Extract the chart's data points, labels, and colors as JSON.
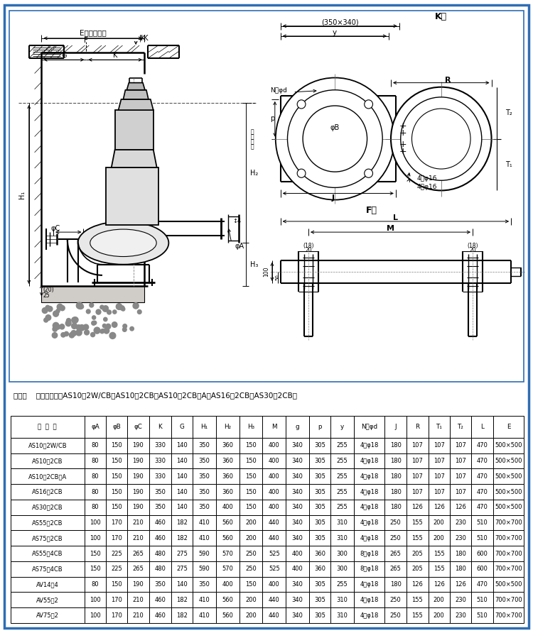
{
  "note": "注：（    ）内尺寸适用AS10－2W/CB、AS10－2CB、AS10－2CB－A、AS16－2CB、AS30－2CB。",
  "headers": [
    "泵  型  号",
    "φA",
    "φB",
    "φC",
    "K",
    "G",
    "H₁",
    "H₂",
    "H₃",
    "M",
    "g",
    "p",
    "y",
    "N－φd",
    "J",
    "R",
    "T₁",
    "T₂",
    "L",
    "E"
  ],
  "rows": [
    [
      "AS10－2W/CB",
      "80",
      "150",
      "190",
      "330",
      "140",
      "350",
      "360",
      "150",
      "400",
      "340",
      "305",
      "255",
      "4－φ18",
      "180",
      "107",
      "107",
      "107",
      "470",
      "500×500"
    ],
    [
      "AS10－2CB",
      "80",
      "150",
      "190",
      "330",
      "140",
      "350",
      "360",
      "150",
      "400",
      "340",
      "305",
      "255",
      "4－φ18",
      "180",
      "107",
      "107",
      "107",
      "470",
      "500×500"
    ],
    [
      "AS10－2CB－A",
      "80",
      "150",
      "190",
      "330",
      "140",
      "350",
      "360",
      "150",
      "400",
      "340",
      "305",
      "255",
      "4－φ18",
      "180",
      "107",
      "107",
      "107",
      "470",
      "500×500"
    ],
    [
      "AS16－2CB",
      "80",
      "150",
      "190",
      "350",
      "140",
      "350",
      "360",
      "150",
      "400",
      "340",
      "305",
      "255",
      "4－φ18",
      "180",
      "107",
      "107",
      "107",
      "470",
      "500×500"
    ],
    [
      "AS30－2CB",
      "80",
      "150",
      "190",
      "350",
      "140",
      "350",
      "400",
      "150",
      "400",
      "340",
      "305",
      "255",
      "4－φ18",
      "180",
      "126",
      "126",
      "126",
      "470",
      "500×500"
    ],
    [
      "AS55－2CB",
      "100",
      "170",
      "210",
      "460",
      "182",
      "410",
      "560",
      "200",
      "440",
      "340",
      "305",
      "310",
      "4－φ18",
      "250",
      "155",
      "200",
      "230",
      "510",
      "700×700"
    ],
    [
      "AS75－2CB",
      "100",
      "170",
      "210",
      "460",
      "182",
      "410",
      "560",
      "200",
      "440",
      "340",
      "305",
      "310",
      "4－φ18",
      "250",
      "155",
      "200",
      "230",
      "510",
      "700×700"
    ],
    [
      "AS55－4CB",
      "150",
      "225",
      "265",
      "480",
      "275",
      "590",
      "570",
      "250",
      "525",
      "400",
      "360",
      "300",
      "8－φ18",
      "265",
      "205",
      "155",
      "180",
      "600",
      "700×700"
    ],
    [
      "AS75－4CB",
      "150",
      "225",
      "265",
      "480",
      "275",
      "590",
      "570",
      "250",
      "525",
      "400",
      "360",
      "300",
      "8－φ18",
      "265",
      "205",
      "155",
      "180",
      "600",
      "700×700"
    ],
    [
      "AV14－4",
      "80",
      "150",
      "190",
      "350",
      "140",
      "350",
      "400",
      "150",
      "400",
      "340",
      "305",
      "255",
      "4－φ18",
      "180",
      "126",
      "126",
      "126",
      "470",
      "500×500"
    ],
    [
      "AV55－2",
      "100",
      "170",
      "210",
      "460",
      "182",
      "410",
      "560",
      "200",
      "440",
      "340",
      "305",
      "310",
      "4－φ18",
      "250",
      "155",
      "200",
      "230",
      "510",
      "700×700"
    ],
    [
      "AV75－2",
      "100",
      "170",
      "210",
      "460",
      "182",
      "410",
      "560",
      "200",
      "440",
      "340",
      "305",
      "310",
      "4－φ18",
      "250",
      "155",
      "200",
      "230",
      "510",
      "700×700"
    ]
  ],
  "col_widths": [
    1.65,
    0.48,
    0.48,
    0.48,
    0.5,
    0.48,
    0.52,
    0.52,
    0.52,
    0.52,
    0.52,
    0.48,
    0.52,
    0.68,
    0.5,
    0.48,
    0.48,
    0.48,
    0.5,
    0.68
  ],
  "outer_border_color": "#2e6db4",
  "drawing_border_color": "#2e6db4"
}
